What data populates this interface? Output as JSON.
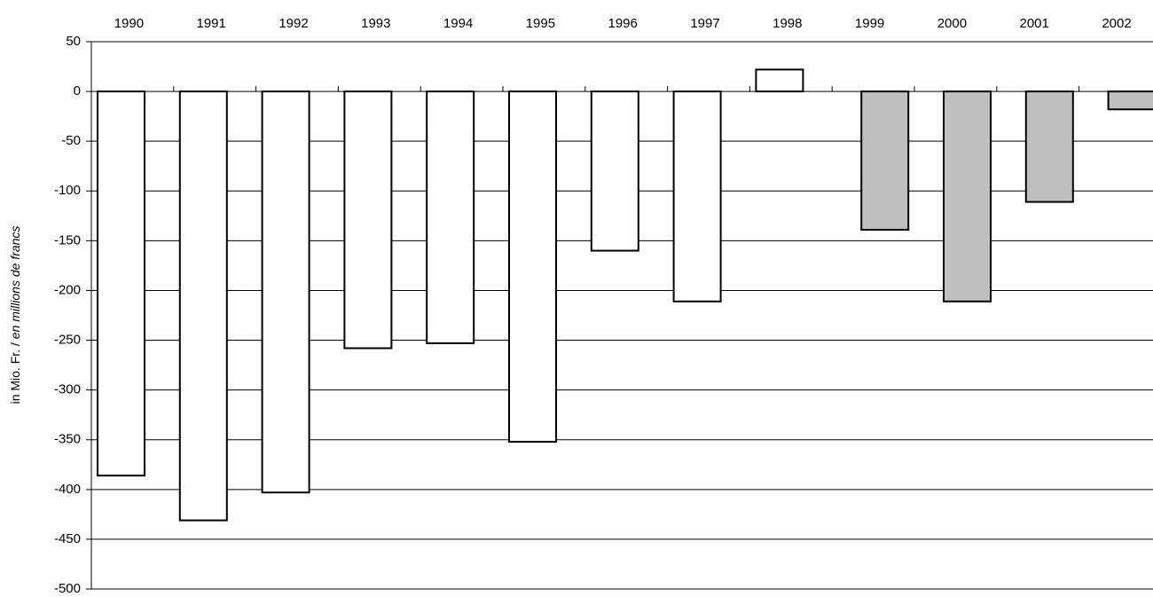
{
  "chart_data": {
    "type": "bar",
    "categories": [
      "1990",
      "1991",
      "1992",
      "1993",
      "1994",
      "1995",
      "1996",
      "1997",
      "1998",
      "1999",
      "2000",
      "2001",
      "2002"
    ],
    "series": [
      {
        "color": "#ffffff",
        "values": [
          -386,
          -431,
          -403,
          -258,
          -253,
          -352,
          -160,
          -211,
          22,
          null,
          null,
          null,
          null
        ]
      },
      {
        "color": "#c0c0c0",
        "values": [
          null,
          null,
          null,
          null,
          null,
          null,
          null,
          null,
          null,
          -139,
          -211,
          -111,
          -18
        ]
      }
    ],
    "ylabel": [
      "in Mio. Fr. /",
      "en millions de francs"
    ],
    "ylim": [
      -500,
      50
    ],
    "yticks": [
      -500,
      -450,
      -400,
      -350,
      -300,
      -250,
      -200,
      -150,
      -100,
      -50,
      0,
      50
    ],
    "grid": true
  }
}
